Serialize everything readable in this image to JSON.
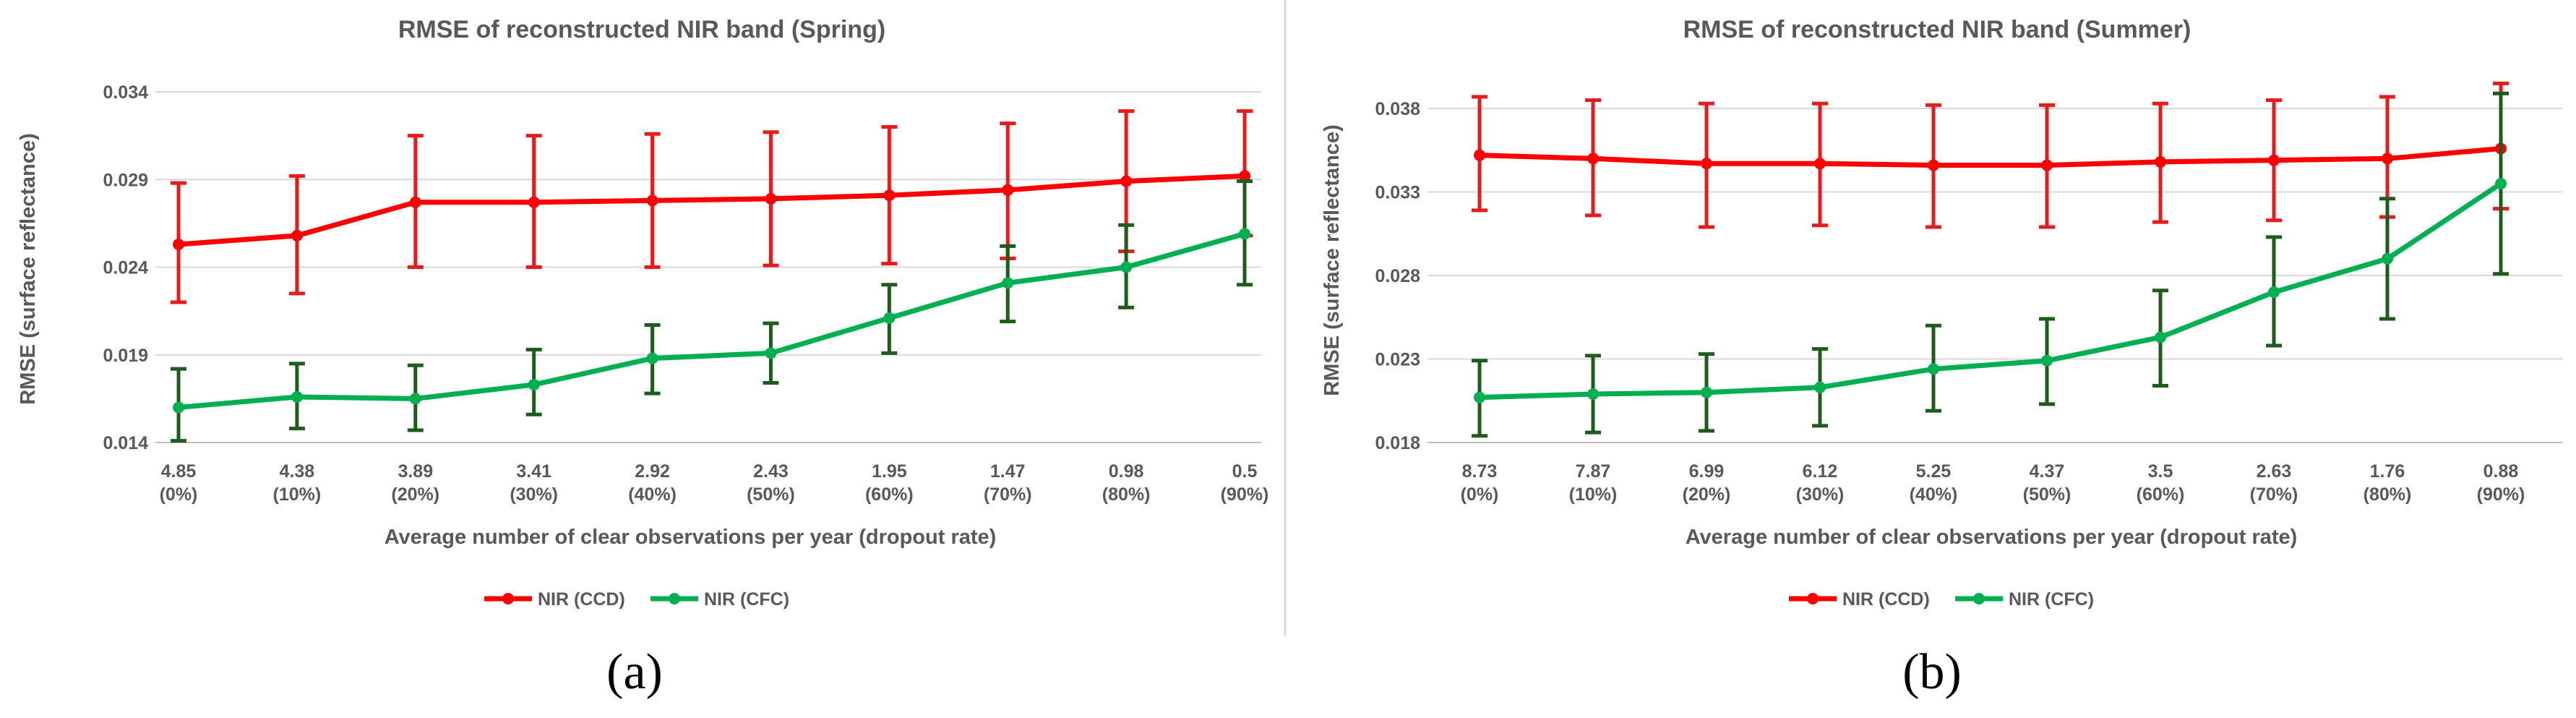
{
  "chart_data": [
    {
      "type": "line",
      "panel": "(a)",
      "title": "RMSE of reconstructed NIR band (Spring)",
      "xlabel": "Average number of clear observations per year (dropout rate)",
      "ylabel": "RMSE (surface reflectance)",
      "categories": [
        [
          "4.85",
          "(0%)"
        ],
        [
          "4.38",
          "(10%)"
        ],
        [
          "3.89",
          "(20%)"
        ],
        [
          "3.41",
          "(30%)"
        ],
        [
          "2.92",
          "(40%)"
        ],
        [
          "2.43",
          "(50%)"
        ],
        [
          "1.95",
          "(60%)"
        ],
        [
          "1.47",
          "(70%)"
        ],
        [
          "0.98",
          "(80%)"
        ],
        [
          "0.5",
          "(90%)"
        ]
      ],
      "ylim": [
        0.014,
        0.034
      ],
      "yticks": [
        0.014,
        0.019,
        0.024,
        0.029,
        0.034
      ],
      "ytick_labels": [
        "0.014",
        "0.019",
        "0.024",
        "0.029",
        "0.034"
      ],
      "series": [
        {
          "name": "NIR (CCD)",
          "color": "#ff0000",
          "errcolor": "#e61c1c",
          "values": [
            0.0253,
            0.0258,
            0.0277,
            0.0277,
            0.0278,
            0.0279,
            0.0281,
            0.0284,
            0.0289,
            0.0292
          ],
          "err_low": [
            0.022,
            0.0225,
            0.024,
            0.024,
            0.024,
            0.0241,
            0.0242,
            0.0245,
            0.0249,
            0.0258
          ],
          "err_high": [
            0.0288,
            0.0292,
            0.0315,
            0.0315,
            0.0316,
            0.0317,
            0.032,
            0.0322,
            0.0329,
            0.0329
          ]
        },
        {
          "name": "NIR (CFC)",
          "color": "#00b050",
          "errcolor": "#1e5c1e",
          "values": [
            0.016,
            0.0166,
            0.0165,
            0.0173,
            0.0188,
            0.0191,
            0.0211,
            0.0231,
            0.024,
            0.0259
          ],
          "err_low": [
            0.0141,
            0.0148,
            0.0147,
            0.0156,
            0.0168,
            0.0174,
            0.0191,
            0.0209,
            0.0217,
            0.023
          ],
          "err_high": [
            0.0182,
            0.0185,
            0.0184,
            0.0193,
            0.0207,
            0.0208,
            0.023,
            0.0252,
            0.0264,
            0.0289
          ]
        }
      ]
    },
    {
      "type": "line",
      "panel": "(b)",
      "title": "RMSE of reconstructed NIR band (Summer)",
      "xlabel": "Average number of clear observations per year (dropout rate)",
      "ylabel": "RMSE (surface reflectance)",
      "categories": [
        [
          "8.73",
          "(0%)"
        ],
        [
          "7.87",
          "(10%)"
        ],
        [
          "6.99",
          "(20%)"
        ],
        [
          "6.12",
          "(30%)"
        ],
        [
          "5.25",
          "(40%)"
        ],
        [
          "4.37",
          "(50%)"
        ],
        [
          "3.5",
          "(60%)"
        ],
        [
          "2.63",
          "(70%)"
        ],
        [
          "1.76",
          "(80%)"
        ],
        [
          "0.88",
          "(90%)"
        ]
      ],
      "ylim": [
        0.018,
        0.038
      ],
      "yticks": [
        0.018,
        0.023,
        0.028,
        0.033,
        0.038
      ],
      "ytick_labels": [
        "0.018",
        "0.023",
        "0.028",
        "0.033",
        "0.038"
      ],
      "series": [
        {
          "name": "NIR (CCD)",
          "color": "#ff0000",
          "errcolor": "#e61c1c",
          "values": [
            0.0352,
            0.035,
            0.0347,
            0.0347,
            0.0346,
            0.0346,
            0.0348,
            0.0349,
            0.035,
            0.0356
          ],
          "err_low": [
            0.0319,
            0.0316,
            0.0309,
            0.031,
            0.0309,
            0.0309,
            0.0312,
            0.0313,
            0.0315,
            0.032
          ],
          "err_high": [
            0.0387,
            0.0385,
            0.0383,
            0.0383,
            0.0382,
            0.0382,
            0.0383,
            0.0385,
            0.0387,
            0.0395
          ]
        },
        {
          "name": "NIR (CFC)",
          "color": "#00b050",
          "errcolor": "#1e5c1e",
          "values": [
            0.0207,
            0.0209,
            0.021,
            0.0213,
            0.0224,
            0.0229,
            0.0243,
            0.027,
            0.029,
            0.0335
          ],
          "err_low": [
            0.0184,
            0.0186,
            0.0187,
            0.019,
            0.0199,
            0.0203,
            0.0214,
            0.0238,
            0.0254,
            0.0281
          ],
          "err_high": [
            0.0229,
            0.0232,
            0.0233,
            0.0236,
            0.025,
            0.0254,
            0.0271,
            0.0303,
            0.0326,
            0.0389
          ]
        }
      ]
    }
  ]
}
